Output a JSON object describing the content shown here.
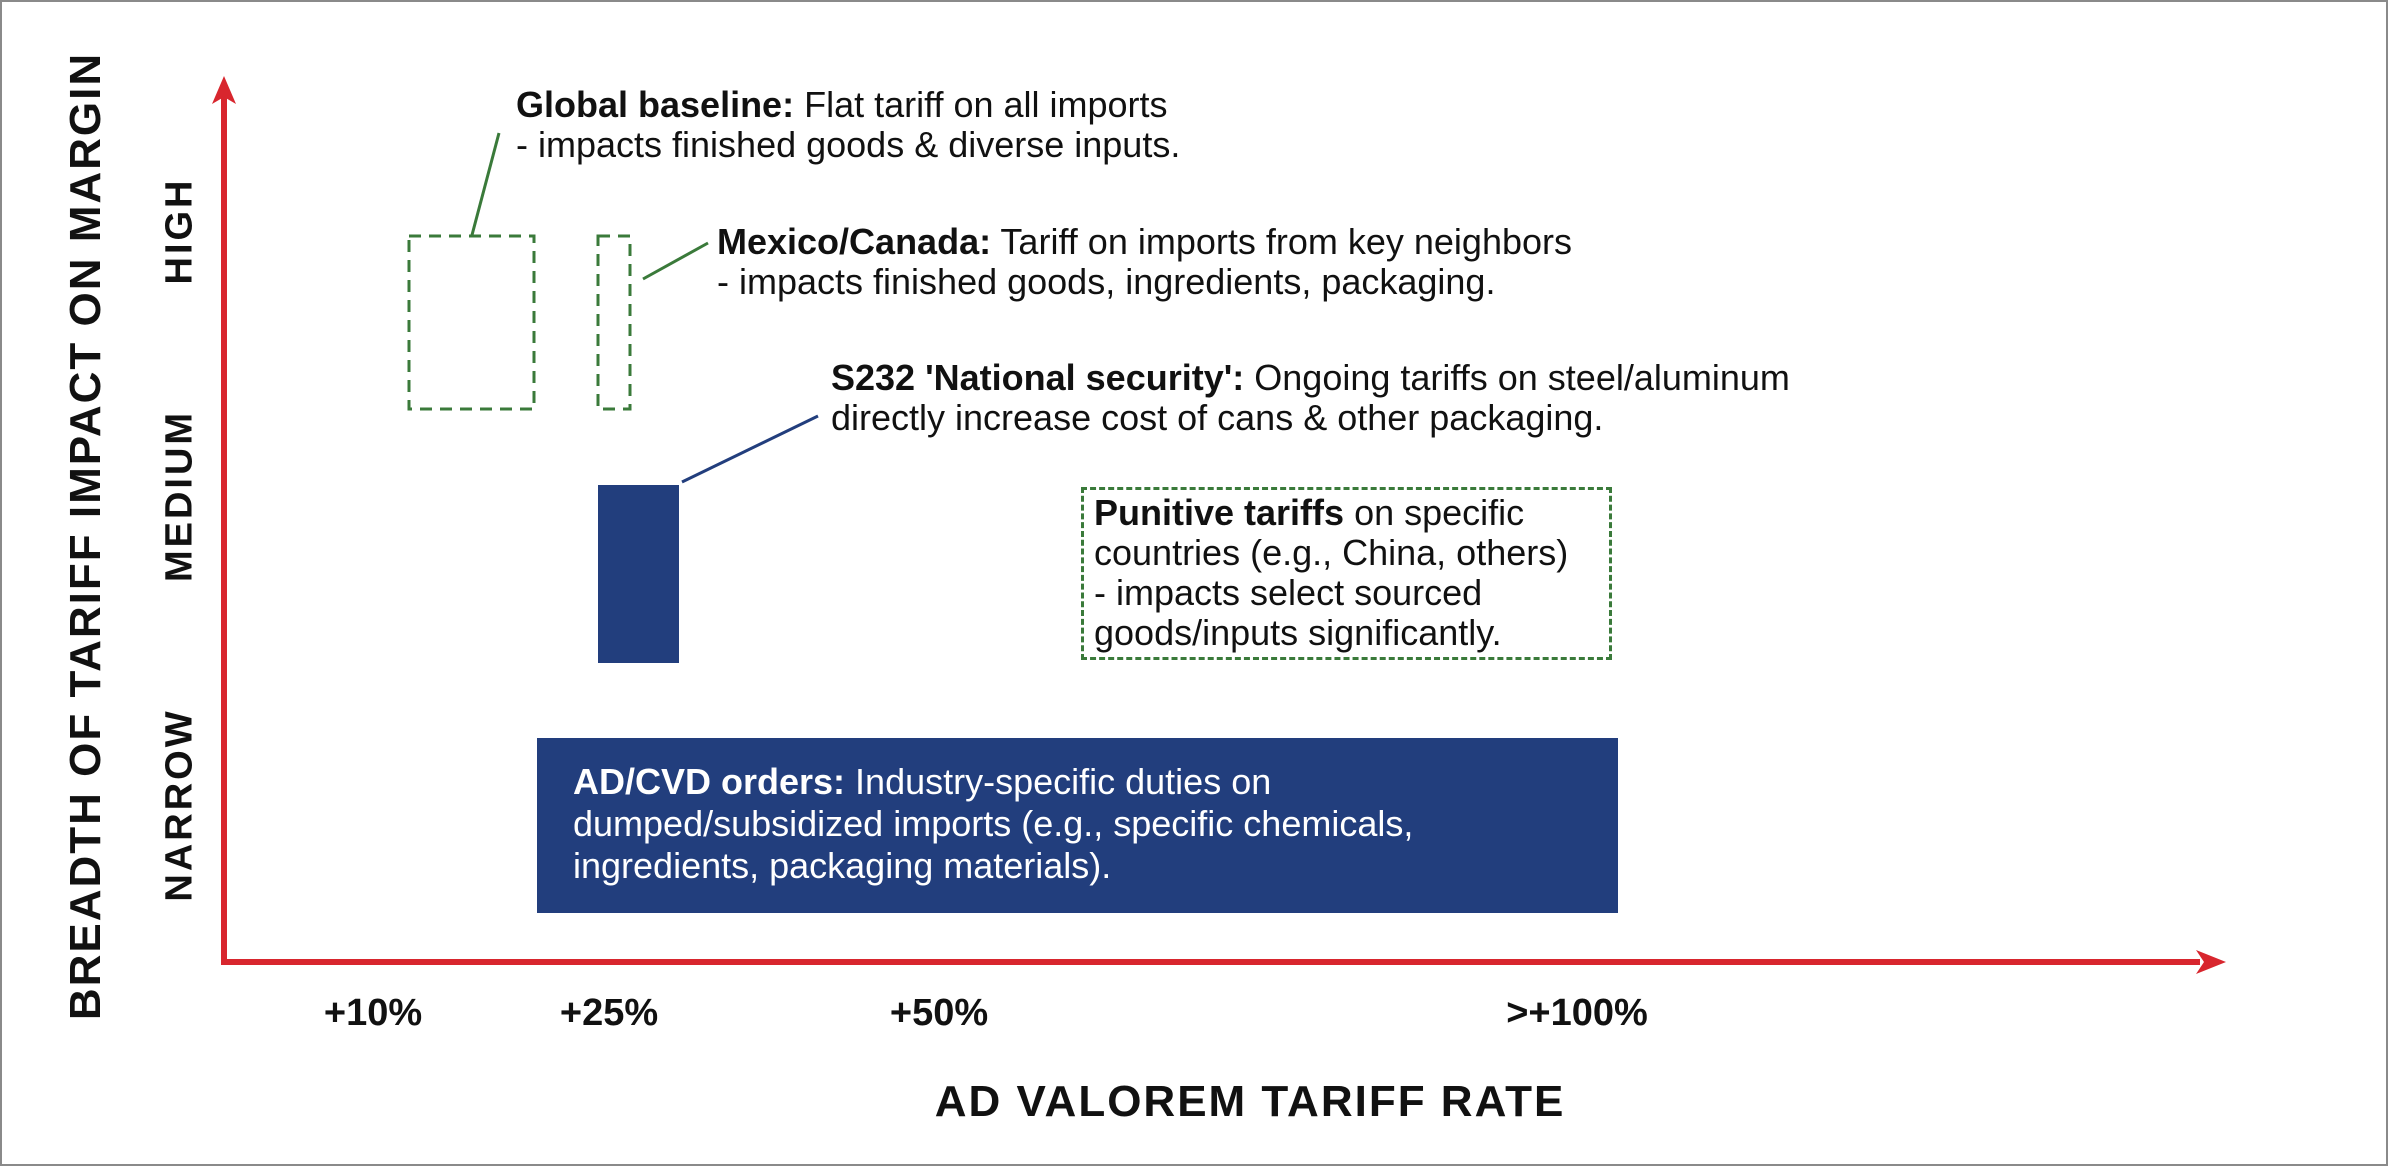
{
  "axes": {
    "y_title": "BREADTH OF TARIFF IMPACT ON MARGIN",
    "x_title": "AD VALOREM TARIFF RATE",
    "y_levels": [
      "HIGH",
      "MEDIUM",
      "NARROW"
    ],
    "x_ticks": [
      "+10%",
      "+25%",
      "+50%",
      ">+100%"
    ]
  },
  "annotations": {
    "global_baseline": {
      "title": "Global baseline:",
      "text1": " Flat tariff on all imports",
      "text2": "- impacts finished goods & diverse inputs."
    },
    "mexico_canada": {
      "title": "Mexico/Canada:",
      "text1": " Tariff on imports from key neighbors",
      "text2": "- impacts finished goods, ingredients, packaging."
    },
    "s232": {
      "title": "S232 'National security':",
      "text1": " Ongoing tariffs on steel/aluminum",
      "text2": "directly increase cost of cans & other packaging."
    },
    "punitive": {
      "title": "Punitive tariffs",
      "text1": " on specific",
      "text2": "countries (e.g., China, others)",
      "text3": "- impacts select sourced",
      "text4": "goods/inputs significantly."
    },
    "adcvd": {
      "title": "AD/CVD orders:",
      "text1": " Industry-specific duties on",
      "text2": "dumped/subsidized imports (e.g., specific chemicals,",
      "text3": "ingredients, packaging materials)."
    }
  },
  "colors": {
    "axis": "#d8262e",
    "navy": "#223e7d",
    "dashed_green": "#3a7a3a",
    "leader_green": "#3a7a3a",
    "leader_navy": "#223e7d"
  }
}
